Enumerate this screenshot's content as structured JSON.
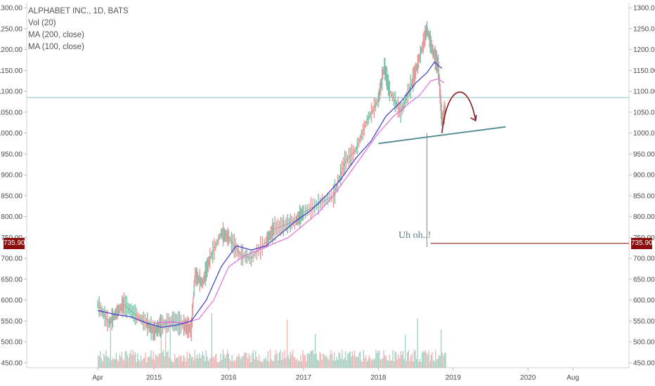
{
  "legend": {
    "line1": "ALPHABET INC., 1D, BATS",
    "line2": "Vol (20)",
    "line3": "MA (200, close)",
    "line4": "MA (100, close)"
  },
  "price_marker": {
    "label": "735.90",
    "value": 735.9,
    "color": "#8b0d0d"
  },
  "annotation": {
    "text": "Uh oh..!"
  },
  "colors": {
    "ma200": "#3a3acf",
    "ma100": "#e46be0",
    "up": "#7fbfa8",
    "down": "#e79a9a",
    "trendline": "#5f8f96",
    "arrow": "#8b1a1a"
  },
  "chart_data": {
    "type": "line",
    "title": "ALPHABET INC., 1D, BATS",
    "y_ticks": [
      450,
      500,
      550,
      600,
      650,
      700,
      750,
      800,
      850,
      900,
      950,
      1000,
      1050,
      1100,
      1150,
      1200,
      1250,
      1300
    ],
    "y_tick_labels": [
      "450.00",
      "500.00",
      "550.00",
      "600.00",
      "650.00",
      "700.00",
      "750.00",
      "800.00",
      "850.00",
      "900.00",
      "950.00",
      "1000.00",
      "1050.00",
      "1100.00",
      "1150.00",
      "1200.00",
      "1250.00",
      "1300.00"
    ],
    "ylim": [
      438,
      1312
    ],
    "x_tick_labels": [
      "Apr",
      "2015",
      "2016",
      "2017",
      "2018",
      "2019",
      "2020",
      "Aug"
    ],
    "x_tick_years": [
      2014.25,
      2015.0,
      2016.0,
      2017.0,
      2018.0,
      2019.0,
      2020.0,
      2020.6
    ],
    "xlim": [
      2013.3,
      2021.35
    ],
    "price_x": [
      2014.25,
      2014.4,
      2014.5,
      2014.6,
      2014.75,
      2014.9,
      2015.0,
      2015.1,
      2015.25,
      2015.4,
      2015.5,
      2015.55,
      2015.65,
      2015.75,
      2015.9,
      2016.0,
      2016.15,
      2016.3,
      2016.5,
      2016.6,
      2016.75,
      2016.9,
      2017.0,
      2017.2,
      2017.4,
      2017.55,
      2017.7,
      2017.85,
      2018.0,
      2018.08,
      2018.15,
      2018.3,
      2018.45,
      2018.55,
      2018.65,
      2018.72,
      2018.8,
      2018.85,
      2018.9
    ],
    "price_y": [
      590,
      545,
      570,
      590,
      565,
      545,
      525,
      540,
      550,
      540,
      530,
      660,
      640,
      700,
      760,
      750,
      710,
      700,
      740,
      770,
      780,
      790,
      810,
      830,
      850,
      930,
      960,
      1030,
      1080,
      1160,
      1100,
      1050,
      1120,
      1180,
      1250,
      1200,
      1160,
      1030,
      1060
    ],
    "ma200_x": [
      2014.25,
      2014.5,
      2014.7,
      2014.9,
      2015.1,
      2015.3,
      2015.5,
      2015.7,
      2015.9,
      2016.1,
      2016.3,
      2016.5,
      2016.7,
      2016.9,
      2017.1,
      2017.3,
      2017.5,
      2017.7,
      2017.9,
      2018.1,
      2018.3,
      2018.5,
      2018.65,
      2018.75,
      2018.85
    ],
    "ma200_y": [
      575,
      565,
      560,
      545,
      535,
      540,
      550,
      600,
      680,
      730,
      720,
      730,
      760,
      790,
      815,
      850,
      890,
      940,
      980,
      1040,
      1075,
      1120,
      1145,
      1170,
      1155
    ],
    "ma100_x": [
      2015.0,
      2015.2,
      2015.4,
      2015.6,
      2015.8,
      2016.0,
      2016.2,
      2016.4,
      2016.6,
      2016.8,
      2017.0,
      2017.2,
      2017.4,
      2017.6,
      2017.8,
      2018.0,
      2018.2,
      2018.4,
      2018.55,
      2018.7,
      2018.8,
      2018.88
    ],
    "ma100_y": [
      545,
      548,
      545,
      555,
      600,
      680,
      705,
      720,
      735,
      750,
      780,
      810,
      850,
      900,
      950,
      1000,
      1040,
      1070,
      1090,
      1125,
      1130,
      1120
    ],
    "hline_value": 1085,
    "trendline": {
      "x": [
        2018.0,
        2019.7
      ],
      "y": [
        975,
        1015
      ]
    },
    "vertical_marker": {
      "x": 2018.65,
      "y_top": 1000,
      "y_bottom": 727
    },
    "price_line": {
      "x_start": 2018.7,
      "value": 735.9
    }
  }
}
